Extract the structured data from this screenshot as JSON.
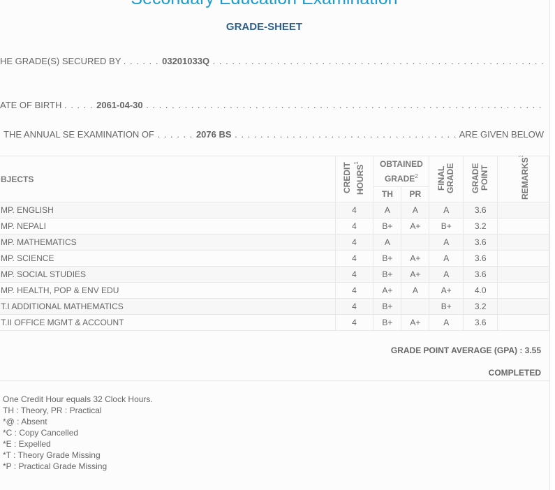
{
  "header": {
    "title": "Secondary Education Examination",
    "subtitle": "GRADE-SHEET"
  },
  "info": {
    "secured_label": "HE GRADE(S) SECURED BY",
    "symbol_no": "03201033Q",
    "dob_label": "ATE OF BIRTH",
    "dob": "2061-04-30",
    "exam_label": "THE ANNUAL SE EXAMINATION OF",
    "exam_year": "2076 BS",
    "exam_suffix": "ARE GIVEN BELOW"
  },
  "table": {
    "headers": {
      "subjects": "BJECTS",
      "credit_hours": "CREDIT HOURS",
      "obtained_grade": "OBTAINED GRADE",
      "th": "TH",
      "pr": "PR",
      "final_grade": "FINAL GRADE",
      "grade_point": "GRADE POINT",
      "remarks": "REMARKS",
      "sup1": "1",
      "sup2": "2",
      "sup3": "3"
    },
    "rows": [
      {
        "subject": "MP. ENGLISH",
        "credit": "4",
        "th": "A",
        "pr": "A",
        "final": "A",
        "gp": "3.6"
      },
      {
        "subject": "MP. NEPALI",
        "credit": "4",
        "th": "B+",
        "pr": "A+",
        "final": "B+",
        "gp": "3.2"
      },
      {
        "subject": "MP. MATHEMATICS",
        "credit": "4",
        "th": "A",
        "pr": "",
        "final": "A",
        "gp": "3.6"
      },
      {
        "subject": "MP. SCIENCE",
        "credit": "4",
        "th": "B+",
        "pr": "A+",
        "final": "A",
        "gp": "3.6"
      },
      {
        "subject": "MP. SOCIAL STUDIES",
        "credit": "4",
        "th": "B+",
        "pr": "A+",
        "final": "A",
        "gp": "3.6"
      },
      {
        "subject": "MP. HEALTH, POP & ENV EDU",
        "credit": "4",
        "th": "A+",
        "pr": "A",
        "final": "A+",
        "gp": "4.0"
      },
      {
        "subject": "T.I ADDITIONAL MATHEMATICS",
        "credit": "4",
        "th": "B+",
        "pr": "",
        "final": "B+",
        "gp": "3.2"
      },
      {
        "subject": "T.II OFFICE MGMT & ACCOUNT",
        "credit": "4",
        "th": "B+",
        "pr": "A+",
        "final": "A",
        "gp": "3.6"
      }
    ]
  },
  "summary": {
    "gpa": "GRADE POINT AVERAGE (GPA) : 3.55",
    "status": "COMPLETED"
  },
  "notes": [
    "One Credit Hour equals 32 Clock Hours.",
    "TH : Theory, PR : Practical",
    "*@ : Absent",
    "*C : Copy Cancelled",
    "*E : Expelled",
    "*T : Theory Grade Missing",
    "*P : Practical Grade Missing"
  ]
}
